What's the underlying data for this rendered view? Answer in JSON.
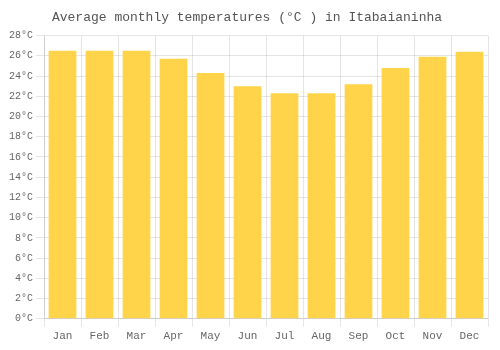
{
  "chart_data": {
    "type": "bar",
    "title": "Average monthly temperatures (°C ) in Itabaianinha",
    "categories": [
      "Jan",
      "Feb",
      "Mar",
      "Apr",
      "May",
      "Jun",
      "Jul",
      "Aug",
      "Sep",
      "Oct",
      "Nov",
      "Dec"
    ],
    "values": [
      26.5,
      26.5,
      26.5,
      25.7,
      24.3,
      23.0,
      22.3,
      22.3,
      23.2,
      24.8,
      25.9,
      26.4
    ],
    "color": "#FFD44A",
    "ylim": [
      0,
      28
    ],
    "yticks": [
      {
        "value": 0,
        "label": "0°C"
      },
      {
        "value": 2,
        "label": "2°C"
      },
      {
        "value": 4,
        "label": "4°C"
      },
      {
        "value": 6,
        "label": "6°C"
      },
      {
        "value": 8,
        "label": "8°C"
      },
      {
        "value": 10,
        "label": "10°C"
      },
      {
        "value": 12,
        "label": "12°C"
      },
      {
        "value": 14,
        "label": "14°C"
      },
      {
        "value": 16,
        "label": "16°C"
      },
      {
        "value": 18,
        "label": "18°C"
      },
      {
        "value": 20,
        "label": "20°C"
      },
      {
        "value": 22,
        "label": "22°C"
      },
      {
        "value": 24,
        "label": "24°C"
      },
      {
        "value": 26,
        "label": "26°C"
      },
      {
        "value": 28,
        "label": "28°C"
      }
    ],
    "grid": true
  }
}
